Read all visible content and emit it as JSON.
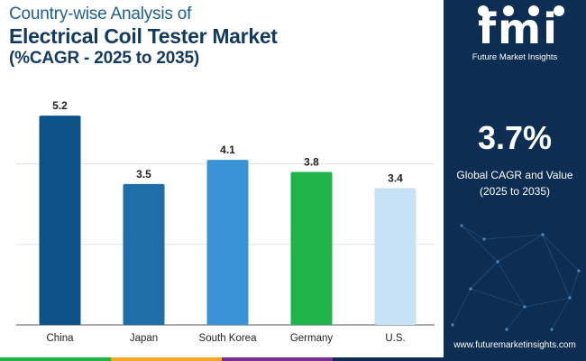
{
  "header": {
    "line1": "Country-wise Analysis of",
    "line2": "Electrical Coil Tester Market",
    "line3": "(%CAGR - 2025 to 2035)"
  },
  "chart_data": {
    "type": "bar",
    "categories": [
      "China",
      "Japan",
      "South Korea",
      "Germany",
      "U.S."
    ],
    "values": [
      5.2,
      3.5,
      4.1,
      3.8,
      3.4
    ],
    "data_labels": [
      "5.2",
      "3.5",
      "4.1",
      "3.8",
      "3.4"
    ],
    "bar_colors": [
      "#0d5289",
      "#1f6ea8",
      "#3a93d4",
      "#1fb34a",
      "#c6e2f4"
    ],
    "ylim": [
      0,
      6
    ],
    "grid": true,
    "legend": "none"
  },
  "stripe_colors": [
    "#1fb34a",
    "#f5a623",
    "#7a2e8e",
    "#0e2d52"
  ],
  "panel": {
    "logo_letters": "fmi",
    "logo_subtitle": "Future Market Insights",
    "kpi_value": "3.7%",
    "kpi_label_line1": "Global CAGR and Value",
    "kpi_label_line2": "(2025 to 2035)",
    "website": "www.futuremarketinsights.com",
    "background": "#0e2d52"
  }
}
